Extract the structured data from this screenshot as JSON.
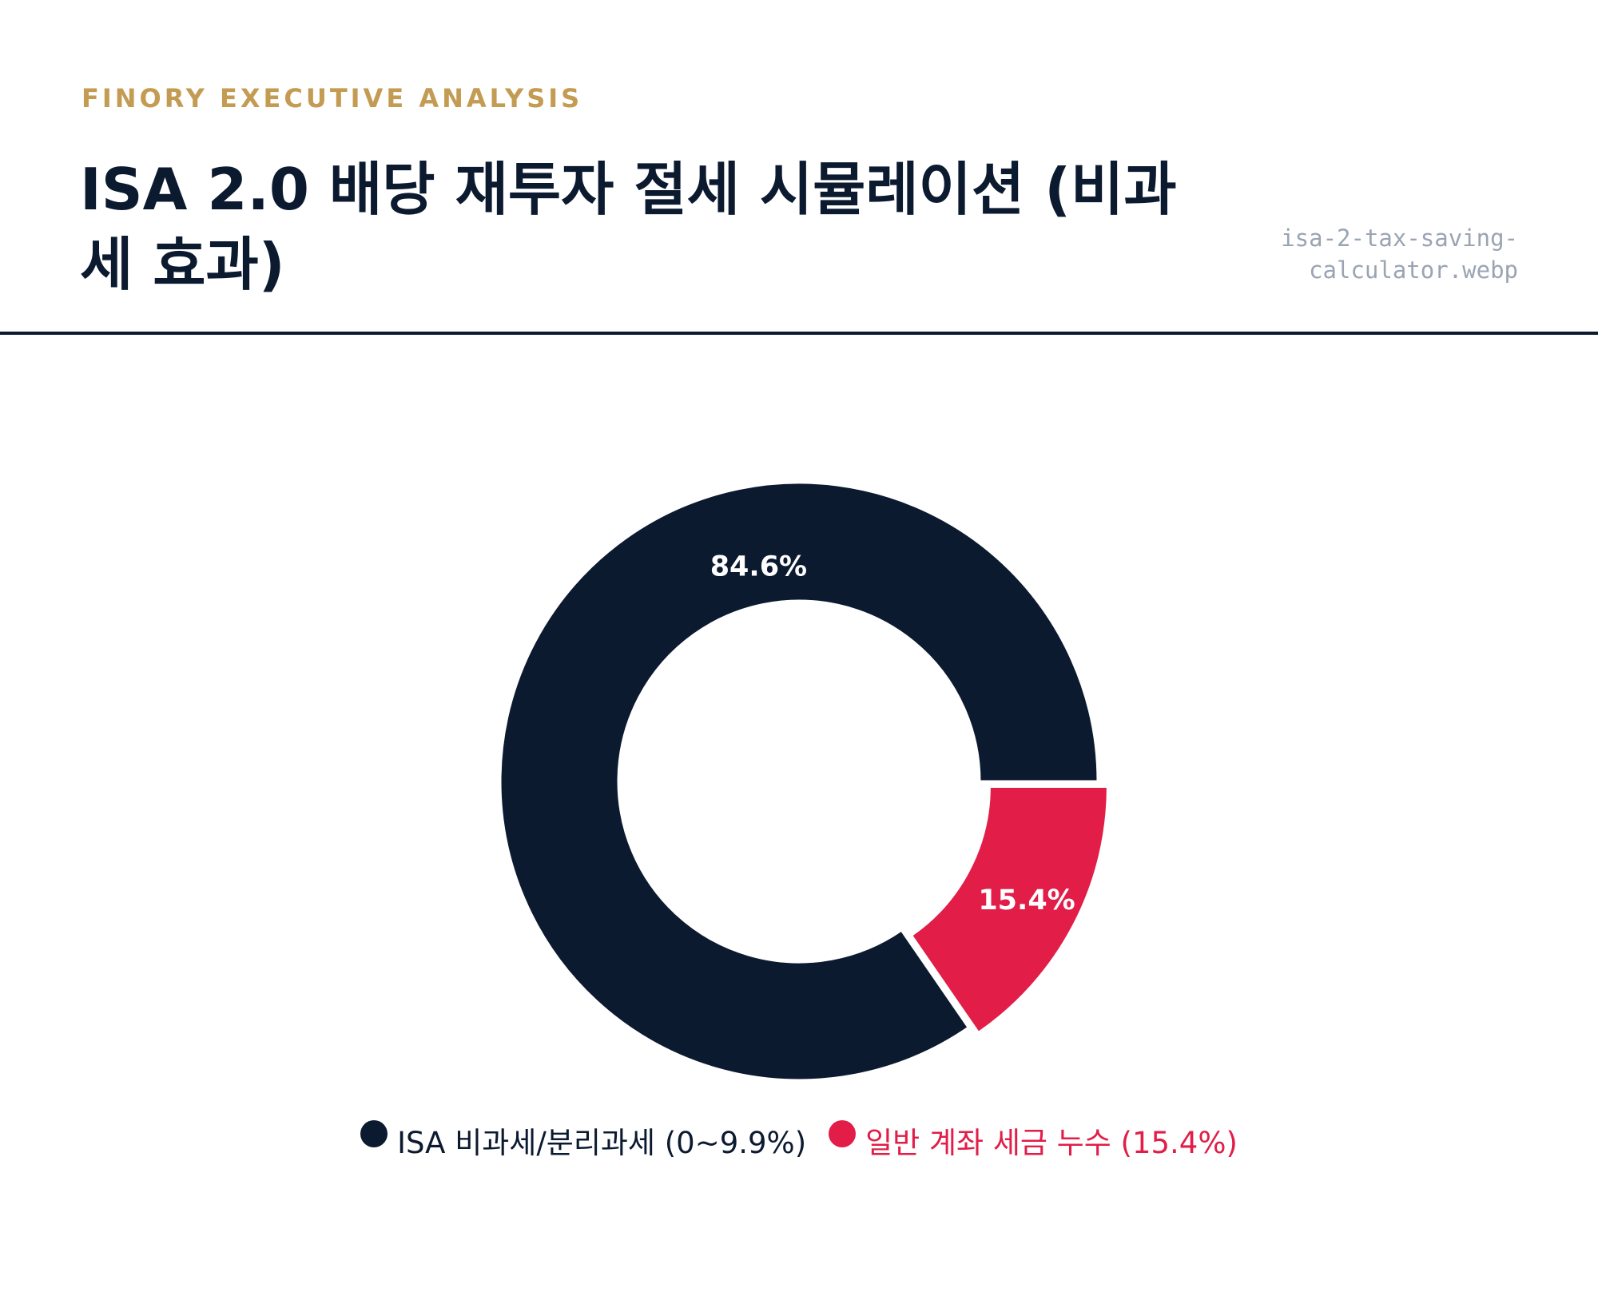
{
  "header": {
    "kicker": "FINORY EXECUTIVE ANALYSIS",
    "title": "ISA 2.0 배당 재투자 절세 시뮬레이션 (비과세 효과)",
    "filename_line1": "isa-2-tax-saving-",
    "filename_line2": "calculator.webp"
  },
  "colors": {
    "kicker": "#c49b52",
    "navy": "#0c1a30",
    "crimson": "#e11d48",
    "filename": "#9aa4b2"
  },
  "chart_data": {
    "type": "pie",
    "donut": true,
    "categories": [
      "ISA 비과세/분리과세 (0~9.9%)",
      "일반 계좌 세금 누수 (15.4%)"
    ],
    "values": [
      84.6,
      15.4
    ],
    "data_labels": [
      "84.6%",
      "15.4%"
    ],
    "colors": [
      "#0c1a30",
      "#e11d48"
    ],
    "exploded": [
      false,
      true
    ],
    "legend_position": "bottom",
    "title": ""
  }
}
